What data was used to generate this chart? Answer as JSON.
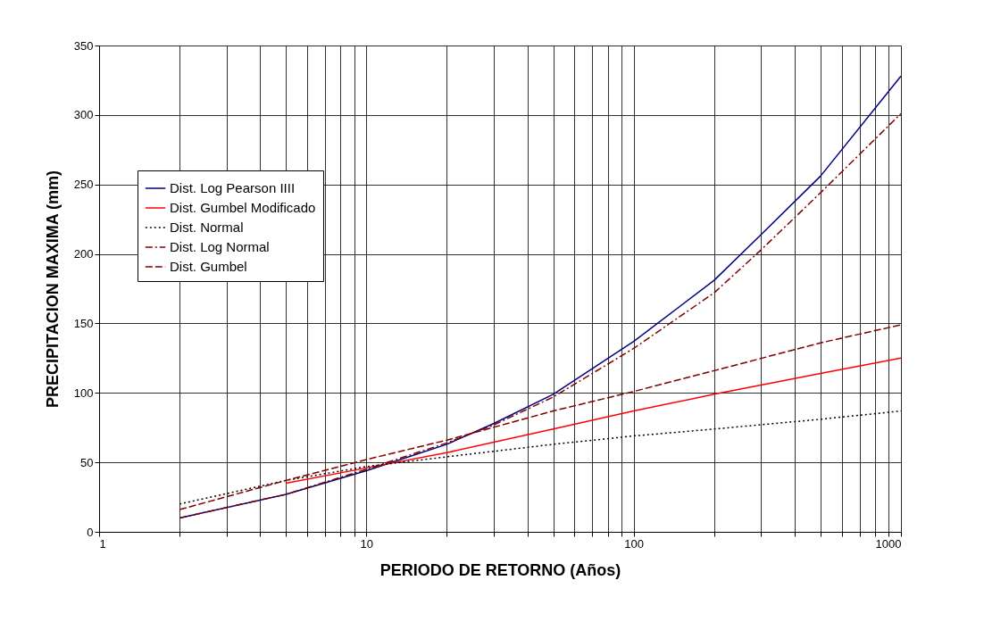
{
  "chart_data": {
    "type": "line",
    "xlabel": "PERIODO DE RETORNO (Años)",
    "ylabel": "PRECIPITACION MAXIMA (mm)",
    "log": "x",
    "xlim": [
      1,
      1000
    ],
    "xticks": [
      1,
      10,
      100,
      1000
    ],
    "ylim": [
      0,
      350
    ],
    "yticks": [
      0,
      50,
      100,
      150,
      200,
      250,
      300,
      350
    ],
    "grid": true,
    "legend": "top left",
    "marker": "none",
    "series": [
      {
        "name": "Dist. Log Pearson IIII",
        "color": "#000080",
        "line_style": "solid",
        "x": [
          2,
          5,
          10,
          20,
          30,
          50,
          100,
          200,
          300,
          500,
          1000
        ],
        "values": [
          10,
          27,
          44,
          63,
          78,
          99,
          137,
          181,
          214,
          256,
          328
        ]
      },
      {
        "name": "Dist. Gumbel Modificado",
        "color": "#ff0000",
        "line_style": "solid",
        "x": [
          5,
          10,
          20,
          50,
          100,
          200,
          500,
          1000
        ],
        "values": [
          35,
          46,
          57,
          74,
          87,
          99,
          114,
          125
        ]
      },
      {
        "name": "Dist. Normal",
        "color": "#000000",
        "line_style": "dotted",
        "x": [
          2,
          5,
          10,
          20,
          50,
          100,
          200,
          500,
          1000
        ],
        "values": [
          20,
          37,
          47,
          54,
          63,
          69,
          74,
          81,
          87
        ]
      },
      {
        "name": "Dist. Log Normal",
        "color": "#800000",
        "line_style": "dashdot",
        "x": [
          2,
          5,
          10,
          20,
          30,
          50,
          100,
          200,
          300,
          500,
          1000
        ],
        "values": [
          10,
          27,
          45,
          64,
          77,
          97,
          132,
          172,
          203,
          244,
          301
        ]
      },
      {
        "name": "Dist. Gumbel",
        "color": "#800000",
        "line_style": "dashed",
        "x": [
          2,
          5,
          10,
          20,
          50,
          100,
          200,
          500,
          1000
        ],
        "values": [
          16,
          37,
          52,
          66,
          87,
          101,
          116,
          136,
          149
        ]
      }
    ]
  }
}
